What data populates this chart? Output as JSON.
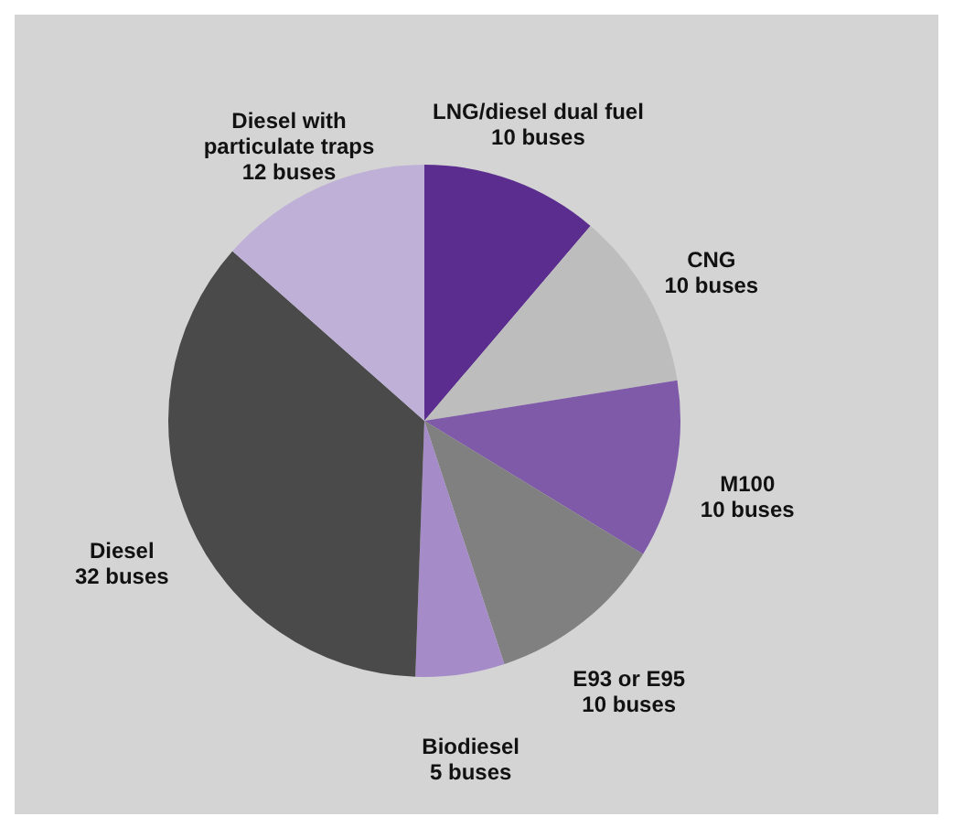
{
  "chart_data": {
    "type": "pie",
    "categories": [
      "LNG/diesel dual fuel",
      "CNG",
      "M100",
      "E93 or E95",
      "Biodiesel",
      "Diesel",
      "Diesel with particulate traps"
    ],
    "values": [
      10,
      10,
      10,
      10,
      5,
      32,
      12
    ],
    "value_labels": [
      "10 buses",
      "10 buses",
      "10 buses",
      "10 buses",
      "5 buses",
      "32 buses",
      "12 buses"
    ],
    "colors": [
      "#5b2d8e",
      "#bdbdbd",
      "#7e5aa8",
      "#808080",
      "#a58cc8",
      "#4a4a4a",
      "#bfb0d8"
    ]
  }
}
